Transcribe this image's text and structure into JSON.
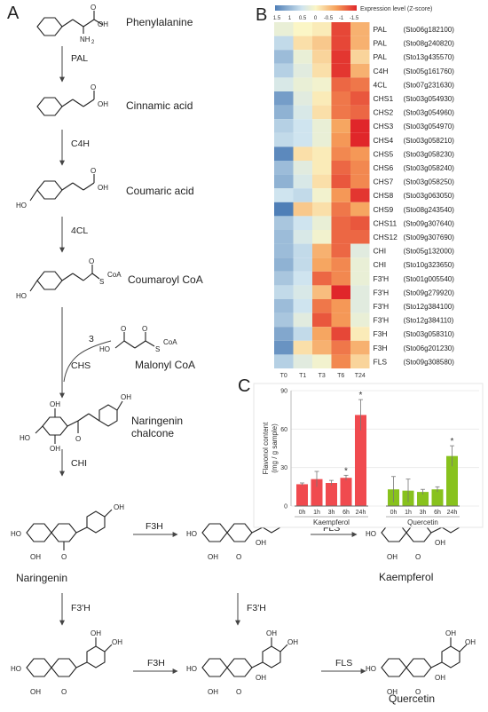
{
  "panels": {
    "a": "A",
    "b": "B",
    "c": "C"
  },
  "pathway": {
    "compounds": [
      "Phenylalanine",
      "Cinnamic acid",
      "Coumaric acid",
      "Coumaroyl CoA",
      "Malonyl CoA",
      "Naringenin chalcone",
      "Naringenin",
      "Kaempferol",
      "Quercetin"
    ],
    "compound_extra": "chalcone",
    "enzymes": [
      "PAL",
      "C4H",
      "4CL",
      "CHS",
      "CHI",
      "F3H",
      "FLS",
      "F3'H",
      "F3H",
      "FLS"
    ],
    "malonyl_stoich": "3",
    "atom_labels": {
      "nh2": "NH",
      "nh2_sub": "2",
      "oh": "OH",
      "ho": "HO",
      "o": "O",
      "s": "S",
      "coa": "CoA"
    }
  },
  "heatmap": {
    "legend_title": "Expression level (Z-score)",
    "legend_ticks": [
      "1.5",
      "1",
      "0.5",
      "0",
      "-0.5",
      "-1",
      "-1.5"
    ],
    "columns": [
      "T0",
      "T1",
      "T3",
      "T6",
      "T24"
    ],
    "genes": [
      {
        "name": "PAL",
        "id": "(Sto06g182100)",
        "z": [
          -0.2,
          0.0,
          0.1,
          1.3,
          0.6
        ]
      },
      {
        "name": "PAL",
        "id": "(Sto08g240820)",
        "z": [
          -0.6,
          0.2,
          0.4,
          1.3,
          0.6
        ]
      },
      {
        "name": "PAL",
        "id": "(Sto13g435570)",
        "z": [
          -0.9,
          -0.2,
          0.3,
          1.4,
          0.3
        ]
      },
      {
        "name": "C4H",
        "id": "(Sto05g161760)",
        "z": [
          -0.7,
          -0.3,
          0.2,
          1.4,
          0.6
        ]
      },
      {
        "name": "4CL",
        "id": "(Sto07g231630)",
        "z": [
          -0.4,
          -0.2,
          -0.1,
          1.1,
          1.0
        ]
      },
      {
        "name": "CHS1",
        "id": "(Sto03g054930)",
        "z": [
          -1.2,
          -0.3,
          0.1,
          1.0,
          1.2
        ]
      },
      {
        "name": "CHS2",
        "id": "(Sto03g054960)",
        "z": [
          -1.0,
          -0.4,
          0.2,
          1.0,
          1.1
        ]
      },
      {
        "name": "CHS3",
        "id": "(Sto03g054970)",
        "z": [
          -0.7,
          -0.5,
          -0.2,
          0.7,
          1.6
        ]
      },
      {
        "name": "CHS4",
        "id": "(Sto03g058210)",
        "z": [
          -0.6,
          -0.5,
          -0.2,
          0.8,
          1.5
        ]
      },
      {
        "name": "CHS5",
        "id": "(Sto03g058230)",
        "z": [
          -1.4,
          0.2,
          0.1,
          0.9,
          0.8
        ]
      },
      {
        "name": "CHS6",
        "id": "(Sto03g058240)",
        "z": [
          -0.9,
          -0.3,
          0.1,
          1.1,
          0.9
        ]
      },
      {
        "name": "CHS7",
        "id": "(Sto03g058250)",
        "z": [
          -1.0,
          -0.4,
          0.2,
          1.2,
          0.9
        ]
      },
      {
        "name": "CHS8",
        "id": "(Sto03g063050)",
        "z": [
          -0.5,
          -0.6,
          -0.1,
          0.8,
          1.4
        ]
      },
      {
        "name": "CHS9",
        "id": "(Sto08g243540)",
        "z": [
          -1.5,
          0.4,
          0.2,
          1.0,
          0.7
        ]
      },
      {
        "name": "CHS11",
        "id": "(Sto09g307640)",
        "z": [
          -0.8,
          -0.5,
          -0.2,
          1.1,
          1.2
        ]
      },
      {
        "name": "CHS12",
        "id": "(Sto09g307690)",
        "z": [
          -0.9,
          -0.4,
          -0.1,
          1.1,
          1.1
        ]
      },
      {
        "name": "CHI",
        "id": "(Sto05g132000)",
        "z": [
          -0.9,
          -0.6,
          0.6,
          1.1,
          -0.3
        ]
      },
      {
        "name": "CHI",
        "id": "(Sto10g323650)",
        "z": [
          -1.0,
          -0.6,
          0.7,
          0.9,
          -0.2
        ]
      },
      {
        "name": "F3'H",
        "id": "(Sto01g005540)",
        "z": [
          -0.8,
          -0.5,
          1.1,
          0.9,
          -0.2
        ]
      },
      {
        "name": "F3'H",
        "id": "(Sto09g279920)",
        "z": [
          -0.6,
          -0.4,
          0.5,
          1.5,
          -0.3
        ]
      },
      {
        "name": "F3'H",
        "id": "(Sto12g384100)",
        "z": [
          -0.9,
          -0.5,
          1.0,
          0.8,
          -0.3
        ]
      },
      {
        "name": "F3'H",
        "id": "(Sto12g384110)",
        "z": [
          -0.8,
          -0.3,
          1.2,
          0.8,
          -0.2
        ]
      },
      {
        "name": "F3H",
        "id": "(Sto03g058310)",
        "z": [
          -1.1,
          -0.6,
          0.7,
          1.3,
          0.1
        ]
      },
      {
        "name": "F3H",
        "id": "(Sto06g201230)",
        "z": [
          -1.3,
          0.2,
          0.6,
          1.0,
          0.6
        ]
      },
      {
        "name": "FLS",
        "id": "(Sto09g308580)",
        "z": [
          -0.7,
          -0.3,
          -0.1,
          0.9,
          0.3
        ]
      }
    ]
  },
  "chart_data": {
    "type": "bar",
    "ylabel": "Flavonol content (mg / g sample)",
    "ylabel_line1": "Flavonol content",
    "ylabel_line2": "(mg / g sample)",
    "ylim": [
      0,
      90
    ],
    "yticks": [
      0,
      30,
      60,
      90
    ],
    "groups": [
      {
        "name": "Kaempferol",
        "color": "#f04a4f",
        "categories": [
          "0h",
          "1h",
          "3h",
          "6h",
          "24h"
        ],
        "values": [
          17,
          21,
          18,
          22,
          71
        ],
        "errors": [
          1,
          6,
          2,
          2,
          12
        ],
        "significant": [
          false,
          false,
          false,
          true,
          true
        ]
      },
      {
        "name": "Quercetin",
        "color": "#88c21d",
        "categories": [
          "0h",
          "1h",
          "3h",
          "6h",
          "24h"
        ],
        "values": [
          13,
          12,
          11,
          13,
          39
        ],
        "errors": [
          10,
          9,
          2,
          2,
          8
        ],
        "significant": [
          false,
          false,
          false,
          false,
          true
        ]
      }
    ],
    "significance_marker": "*"
  }
}
